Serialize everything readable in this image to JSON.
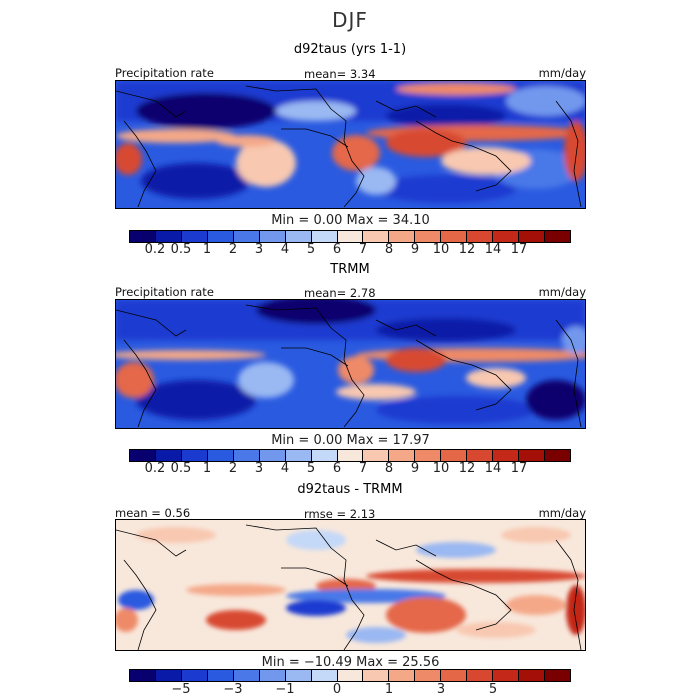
{
  "season": "DJF",
  "panels": [
    {
      "title": "d92taus (yrs 1-1)",
      "left_label": "Precipitation rate",
      "center_label": "mean=   3.34",
      "right_label": "mm/day",
      "minmax": "Min =    0.00  Max =   34.10"
    },
    {
      "title": "TRMM",
      "left_label": "Precipitation rate",
      "center_label": "mean=   2.78",
      "right_label": "mm/day",
      "minmax": "Min =    0.00  Max =   17.97"
    },
    {
      "title": "d92taus - TRMM",
      "left_label": "mean =   0.56",
      "center_label": "rmse =   2.13",
      "right_label": "mm/day",
      "minmax": "Min = −10.49  Max =   25.56"
    }
  ],
  "colorbar_precip": {
    "colors": [
      "#08006e",
      "#0a1aa8",
      "#1a3ad0",
      "#2a5ae0",
      "#4a78e8",
      "#7298ee",
      "#9ab8f2",
      "#c4d8f8",
      "#f8e8dc",
      "#f8c8b0",
      "#f4a888",
      "#ee8a68",
      "#e46848",
      "#d84830",
      "#c42818",
      "#a41008",
      "#7a0000"
    ],
    "ticks": [
      "0.2",
      "0.5",
      "1",
      "2",
      "3",
      "4",
      "5",
      "6",
      "7",
      "8",
      "9",
      "10",
      "12",
      "14",
      "17"
    ]
  },
  "colorbar_diff": {
    "colors": [
      "#08006e",
      "#0a1aa8",
      "#1a3ad0",
      "#2a5ae0",
      "#4a78e8",
      "#7298ee",
      "#9ab8f2",
      "#c4d8f8",
      "#f8e8dc",
      "#f8c8b0",
      "#f4a888",
      "#ee8a68",
      "#e46848",
      "#d84830",
      "#c42818",
      "#a41008",
      "#7a0000"
    ],
    "ticks": [
      "−5",
      "−3",
      "−1",
      "0",
      "1",
      "3",
      "5"
    ]
  }
}
